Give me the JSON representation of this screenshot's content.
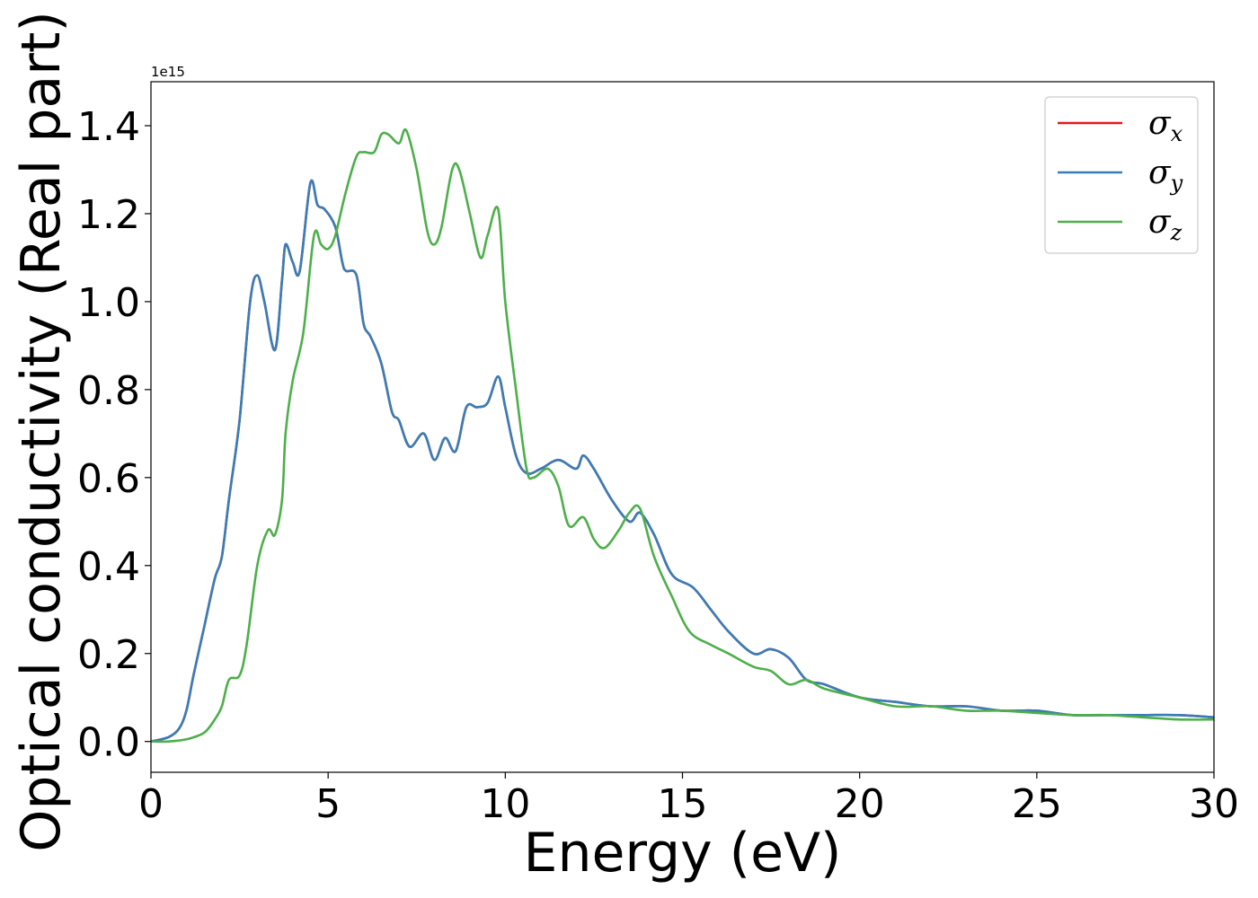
{
  "chart_data": {
    "type": "line",
    "xlabel": "Energy (eV)",
    "ylabel": "Optical conductivity (Real part)",
    "offset_text": "1e15",
    "xlim": [
      0,
      30
    ],
    "ylim": [
      -0.07,
      1.5
    ],
    "x_ticks": [
      0,
      5,
      10,
      15,
      20,
      25,
      30
    ],
    "x_tick_labels": [
      "0",
      "5",
      "10",
      "15",
      "20",
      "25",
      "30"
    ],
    "y_ticks": [
      0.0,
      0.2,
      0.4,
      0.6,
      0.8,
      1.0,
      1.2,
      1.4
    ],
    "y_tick_labels": [
      "0.0",
      "0.2",
      "0.4",
      "0.6",
      "0.8",
      "1.0",
      "1.2",
      "1.4"
    ],
    "grid": false,
    "legend_position": "top-right",
    "series": [
      {
        "name": "σx",
        "symbol": "σ",
        "subscript": "x",
        "color": "#e41a1c",
        "x": [
          0,
          0.5,
          0.8,
          1.0,
          1.2,
          1.5,
          1.8,
          2.0,
          2.2,
          2.5,
          2.8,
          3.0,
          3.2,
          3.5,
          3.7,
          3.8,
          4.0,
          4.2,
          4.5,
          4.7,
          4.9,
          5.2,
          5.4,
          5.5,
          5.8,
          6.0,
          6.2,
          6.5,
          6.8,
          7.0,
          7.3,
          7.7,
          8.0,
          8.3,
          8.6,
          8.9,
          9.2,
          9.5,
          9.8,
          10.0,
          10.3,
          10.6,
          11.0,
          11.5,
          12.0,
          12.2,
          12.5,
          13.0,
          13.5,
          13.8,
          14.2,
          14.7,
          15.3,
          15.8,
          16.3,
          17.0,
          17.5,
          18.0,
          18.5,
          19.0,
          20.0,
          21.0,
          22.0,
          23.0,
          24.0,
          25.0,
          26.0,
          27.0,
          28.0,
          29.0,
          30.0
        ],
        "y": [
          0.0,
          0.01,
          0.03,
          0.07,
          0.15,
          0.26,
          0.37,
          0.42,
          0.55,
          0.73,
          1.0,
          1.06,
          1.0,
          0.89,
          1.05,
          1.13,
          1.09,
          1.07,
          1.27,
          1.22,
          1.21,
          1.17,
          1.09,
          1.07,
          1.06,
          0.95,
          0.92,
          0.86,
          0.75,
          0.73,
          0.67,
          0.7,
          0.64,
          0.69,
          0.66,
          0.76,
          0.76,
          0.77,
          0.83,
          0.76,
          0.65,
          0.61,
          0.62,
          0.64,
          0.62,
          0.65,
          0.62,
          0.55,
          0.5,
          0.52,
          0.47,
          0.38,
          0.35,
          0.3,
          0.25,
          0.2,
          0.21,
          0.19,
          0.14,
          0.13,
          0.1,
          0.09,
          0.08,
          0.08,
          0.07,
          0.07,
          0.06,
          0.06,
          0.06,
          0.06,
          0.055
        ]
      },
      {
        "name": "σy",
        "symbol": "σ",
        "subscript": "y",
        "color": "#377eb8",
        "x": [
          0,
          0.5,
          0.8,
          1.0,
          1.2,
          1.5,
          1.8,
          2.0,
          2.2,
          2.5,
          2.8,
          3.0,
          3.2,
          3.5,
          3.7,
          3.8,
          4.0,
          4.2,
          4.5,
          4.7,
          4.9,
          5.2,
          5.4,
          5.5,
          5.8,
          6.0,
          6.2,
          6.5,
          6.8,
          7.0,
          7.3,
          7.7,
          8.0,
          8.3,
          8.6,
          8.9,
          9.2,
          9.5,
          9.8,
          10.0,
          10.3,
          10.6,
          11.0,
          11.5,
          12.0,
          12.2,
          12.5,
          13.0,
          13.5,
          13.8,
          14.2,
          14.7,
          15.3,
          15.8,
          16.3,
          17.0,
          17.5,
          18.0,
          18.5,
          19.0,
          20.0,
          21.0,
          22.0,
          23.0,
          24.0,
          25.0,
          26.0,
          27.0,
          28.0,
          29.0,
          30.0
        ],
        "y": [
          0.0,
          0.01,
          0.03,
          0.07,
          0.15,
          0.26,
          0.37,
          0.42,
          0.55,
          0.73,
          1.0,
          1.06,
          1.0,
          0.89,
          1.05,
          1.13,
          1.09,
          1.07,
          1.27,
          1.22,
          1.21,
          1.17,
          1.09,
          1.07,
          1.06,
          0.95,
          0.92,
          0.86,
          0.75,
          0.73,
          0.67,
          0.7,
          0.64,
          0.69,
          0.66,
          0.76,
          0.76,
          0.77,
          0.83,
          0.76,
          0.65,
          0.61,
          0.62,
          0.64,
          0.62,
          0.65,
          0.62,
          0.55,
          0.5,
          0.52,
          0.47,
          0.38,
          0.35,
          0.3,
          0.25,
          0.2,
          0.21,
          0.19,
          0.14,
          0.13,
          0.1,
          0.09,
          0.08,
          0.08,
          0.07,
          0.07,
          0.06,
          0.06,
          0.06,
          0.06,
          0.055
        ]
      },
      {
        "name": "σz",
        "symbol": "σ",
        "subscript": "z",
        "color": "#4daf4a",
        "x": [
          0,
          0.5,
          1.0,
          1.5,
          1.8,
          2.0,
          2.2,
          2.5,
          2.7,
          3.0,
          3.3,
          3.5,
          3.7,
          3.8,
          4.0,
          4.3,
          4.6,
          4.8,
          5.0,
          5.2,
          5.5,
          5.8,
          6.0,
          6.3,
          6.5,
          6.7,
          7.0,
          7.2,
          7.5,
          7.8,
          8.0,
          8.2,
          8.5,
          8.7,
          9.0,
          9.3,
          9.5,
          9.8,
          10.0,
          10.3,
          10.6,
          10.8,
          11.2,
          11.5,
          11.8,
          12.2,
          12.5,
          12.8,
          13.2,
          13.5,
          13.8,
          14.2,
          14.7,
          15.2,
          15.8,
          16.3,
          17.0,
          17.5,
          18.0,
          18.5,
          19.0,
          20.0,
          21.0,
          22.0,
          23.0,
          24.0,
          25.0,
          26.0,
          27.0,
          28.0,
          29.0,
          30.0
        ],
        "y": [
          0.0,
          0.0,
          0.005,
          0.02,
          0.05,
          0.08,
          0.14,
          0.15,
          0.22,
          0.4,
          0.48,
          0.47,
          0.55,
          0.7,
          0.82,
          0.93,
          1.15,
          1.13,
          1.12,
          1.15,
          1.25,
          1.33,
          1.34,
          1.34,
          1.38,
          1.38,
          1.36,
          1.39,
          1.3,
          1.16,
          1.13,
          1.17,
          1.3,
          1.3,
          1.2,
          1.1,
          1.15,
          1.21,
          1.0,
          0.8,
          0.62,
          0.6,
          0.62,
          0.58,
          0.49,
          0.51,
          0.46,
          0.44,
          0.48,
          0.52,
          0.53,
          0.42,
          0.33,
          0.25,
          0.22,
          0.2,
          0.17,
          0.16,
          0.13,
          0.14,
          0.12,
          0.1,
          0.08,
          0.08,
          0.07,
          0.07,
          0.065,
          0.06,
          0.06,
          0.055,
          0.05,
          0.05
        ]
      }
    ]
  }
}
